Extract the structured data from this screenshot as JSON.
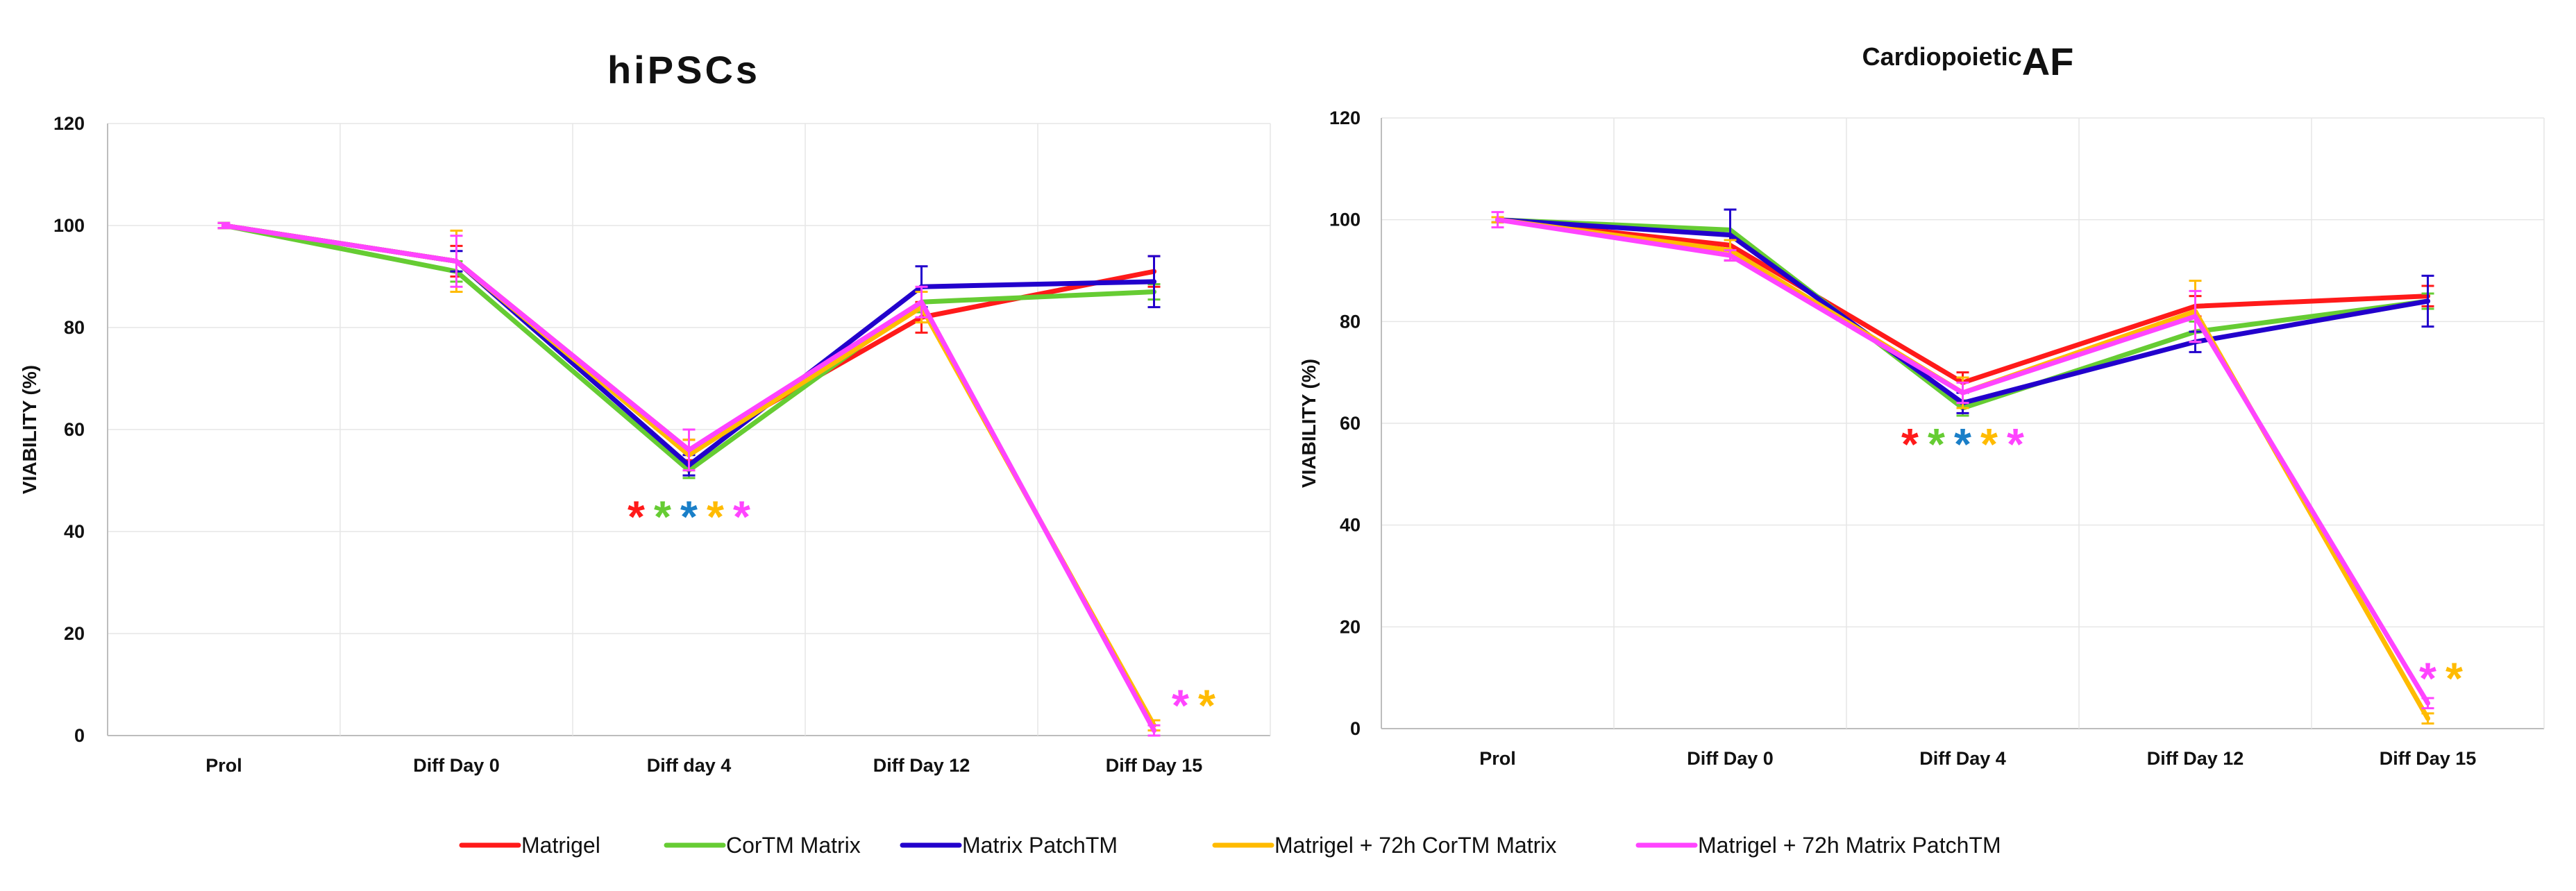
{
  "chart_data": [
    {
      "type": "line",
      "title": "hiPSCs",
      "title_prefix": "",
      "title_main": "hiPSCs",
      "xlabel": "",
      "ylabel": "VIABILITY (%)",
      "ylim": [
        0,
        120
      ],
      "yticks": [
        0,
        20,
        40,
        60,
        80,
        100,
        120
      ],
      "grid": true,
      "categories": [
        "Prol",
        "Diff Day 0",
        "Diff day 4",
        "Diff Day 12",
        "Diff Day 15"
      ],
      "series": [
        {
          "name": "Matrigel",
          "color": "#ff1a1a",
          "values": [
            100,
            93,
            56,
            82,
            91
          ],
          "errors": [
            0.5,
            3,
            2,
            3,
            3
          ]
        },
        {
          "name": "CorTM Matrix",
          "color": "#66cc33",
          "values": [
            100,
            91,
            52,
            85,
            87
          ],
          "errors": [
            0.5,
            2,
            1.5,
            2,
            1.5
          ]
        },
        {
          "name": "Matrix PatchTM",
          "color": "#2200cc",
          "values": [
            100,
            93,
            53,
            88,
            89
          ],
          "errors": [
            0.5,
            2,
            2,
            4,
            5
          ]
        },
        {
          "name": "Matrigel + 72h CorTM Matrix",
          "color": "#ffbb00",
          "values": [
            100,
            93,
            55,
            84,
            2
          ],
          "errors": [
            0.5,
            6,
            3,
            3,
            1
          ]
        },
        {
          "name": "Matrigel + 72h  Matrix PatchTM",
          "color": "#ff44ff",
          "values": [
            100,
            93,
            56,
            85,
            1
          ],
          "errors": [
            0.5,
            5,
            4,
            3,
            1
          ]
        }
      ],
      "annotations": [
        {
          "text": "*",
          "category": "Diff day 4",
          "offset": -2,
          "y": 44,
          "color": "#ff1a1a"
        },
        {
          "text": "*",
          "category": "Diff day 4",
          "offset": -1,
          "y": 44,
          "color": "#66cc33"
        },
        {
          "text": "*",
          "category": "Diff day 4",
          "offset": 0,
          "y": 44,
          "color": "#1a7fc8"
        },
        {
          "text": "*",
          "category": "Diff day 4",
          "offset": 1,
          "y": 44,
          "color": "#ffbb00"
        },
        {
          "text": "*",
          "category": "Diff day 4",
          "offset": 2,
          "y": 44,
          "color": "#ff44ff"
        },
        {
          "text": "*",
          "category": "Diff Day 15",
          "offset": 1,
          "y": 7,
          "color": "#ff44ff"
        },
        {
          "text": "*",
          "category": "Diff Day 15",
          "offset": 2,
          "y": 7,
          "color": "#ffbb00"
        }
      ]
    },
    {
      "type": "line",
      "title": "CardiopoieticAF",
      "title_prefix": "Cardiopoietic",
      "title_main": "AF",
      "xlabel": "",
      "ylabel": "VIABILITY (%)",
      "ylim": [
        0,
        120
      ],
      "yticks": [
        0,
        20,
        40,
        60,
        80,
        100,
        120
      ],
      "grid": true,
      "categories": [
        "Prol",
        "Diff Day 0",
        "Diff Day 4",
        "Diff Day 12",
        "Diff Day 15"
      ],
      "series": [
        {
          "name": "Matrigel",
          "color": "#ff1a1a",
          "values": [
            100,
            95,
            68,
            83,
            85
          ],
          "errors": [
            0.5,
            2,
            2,
            2,
            2
          ]
        },
        {
          "name": "CorTM Matrix",
          "color": "#66cc33",
          "values": [
            100,
            98,
            63,
            78,
            84
          ],
          "errors": [
            0.5,
            4,
            1.5,
            2,
            1.5
          ]
        },
        {
          "name": "Matrix PatchTM",
          "color": "#2200cc",
          "values": [
            100,
            97,
            64,
            76,
            84
          ],
          "errors": [
            0.5,
            5,
            2,
            2,
            5
          ]
        },
        {
          "name": "Matrigel + 72h CorTM Matrix",
          "color": "#ffbb00",
          "values": [
            100,
            94,
            66,
            82,
            2
          ],
          "errors": [
            0.5,
            2,
            3,
            6,
            1
          ]
        },
        {
          "name": "Matrigel + 72h  Matrix PatchTM",
          "color": "#ff44ff",
          "values": [
            100,
            93,
            66,
            81,
            5
          ],
          "errors": [
            1.5,
            1,
            2,
            5,
            1
          ]
        }
      ],
      "annotations": [
        {
          "text": "*",
          "category": "Diff Day 4",
          "offset": -2,
          "y": 57,
          "color": "#ff1a1a"
        },
        {
          "text": "*",
          "category": "Diff Day 4",
          "offset": -1,
          "y": 57,
          "color": "#66cc33"
        },
        {
          "text": "*",
          "category": "Diff Day 4",
          "offset": 0,
          "y": 57,
          "color": "#1a7fc8"
        },
        {
          "text": "*",
          "category": "Diff Day 4",
          "offset": 1,
          "y": 57,
          "color": "#ffbb00"
        },
        {
          "text": "*",
          "category": "Diff Day 4",
          "offset": 2,
          "y": 57,
          "color": "#ff44ff"
        },
        {
          "text": "*",
          "category": "Diff Day 15",
          "offset": 0,
          "y": 11,
          "color": "#ff44ff"
        },
        {
          "text": "*",
          "category": "Diff Day 15",
          "offset": 1,
          "y": 11,
          "color": "#ffbb00"
        }
      ]
    }
  ],
  "legend": {
    "placement": "bottom-center",
    "items": [
      {
        "label": "Matrigel",
        "color": "#ff1a1a"
      },
      {
        "label": "CorTM Matrix",
        "color": "#66cc33"
      },
      {
        "label": "Matrix PatchTM",
        "color": "#2200cc"
      },
      {
        "label": "Matrigel + 72h CorTM Matrix",
        "color": "#ffbb00"
      },
      {
        "label": "Matrigel + 72h  Matrix PatchTM",
        "color": "#ff44ff"
      }
    ]
  }
}
